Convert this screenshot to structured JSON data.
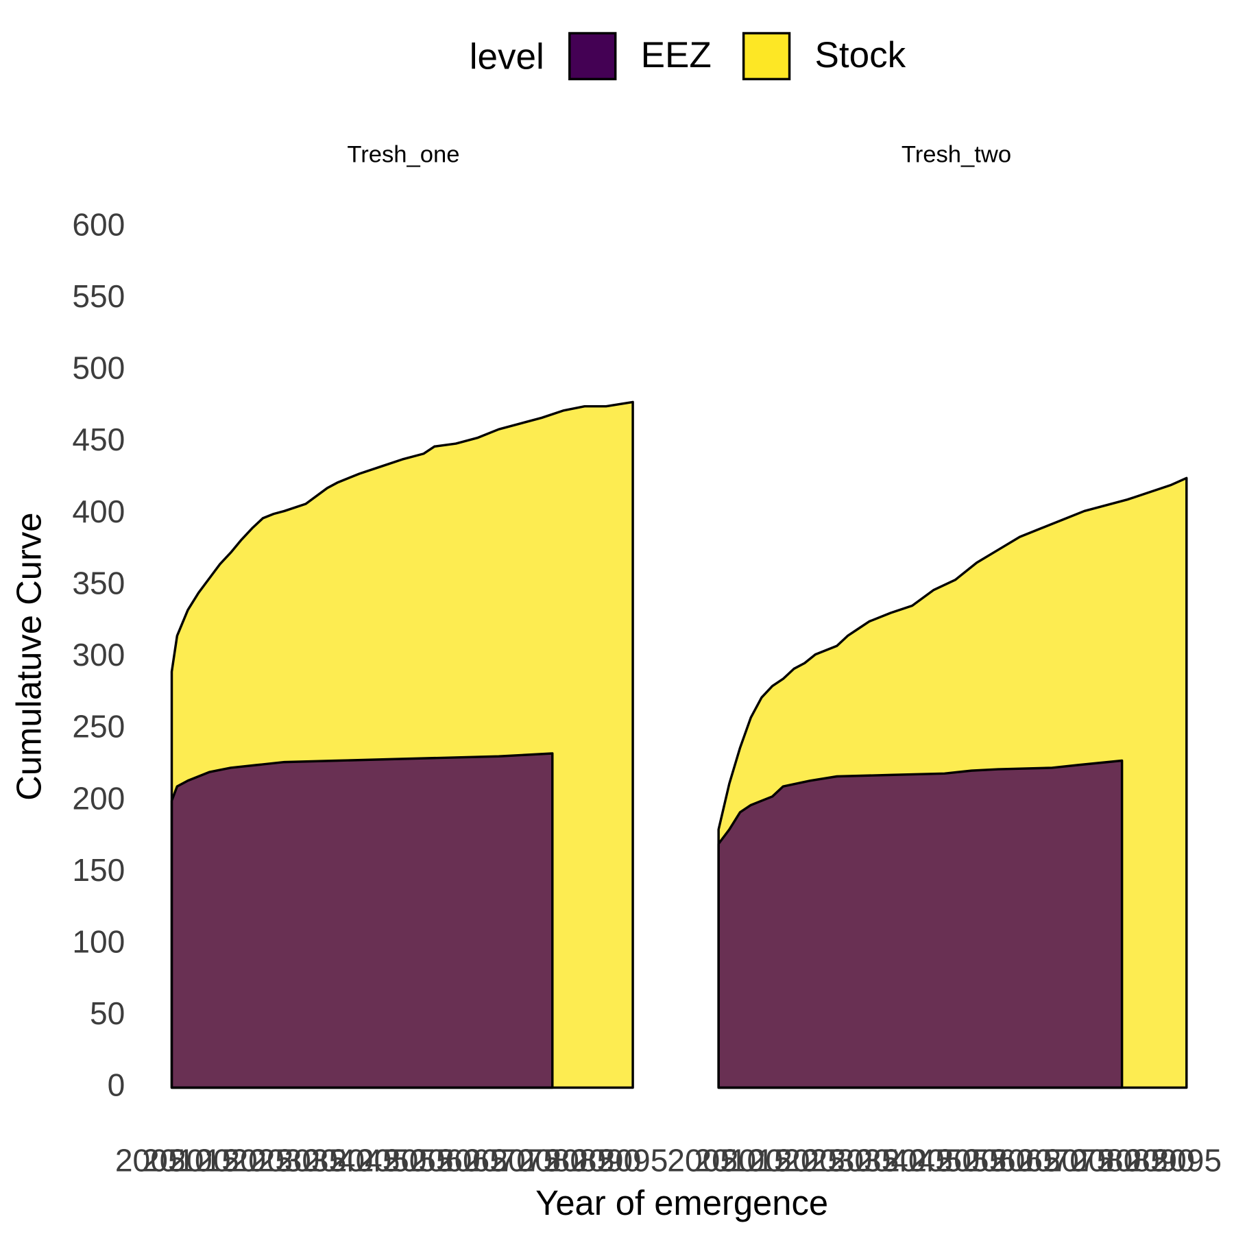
{
  "chart_data": {
    "type": "area",
    "x_label": "Year of emergence",
    "y_label": "Cumulatuve Curve",
    "legend_title": "level",
    "alpha": 0.8,
    "xlim": [
      2005,
      2095
    ],
    "xticks": [
      2005,
      2010,
      2015,
      2020,
      2025,
      2030,
      2035,
      2040,
      2045,
      2050,
      2055,
      2060,
      2065,
      2070,
      2075,
      2080,
      2085,
      2090,
      2095
    ],
    "ylim": [
      0,
      600
    ],
    "yticks": [
      0,
      50,
      100,
      150,
      200,
      250,
      300,
      350,
      400,
      450,
      500,
      550,
      600
    ],
    "facets": [
      {
        "title": "Tresh_one",
        "series": [
          {
            "name": "Stock",
            "color": "#FDE725",
            "x": [
              2009,
              2010,
              2012,
              2014,
              2016,
              2018,
              2020,
              2022,
              2024,
              2026,
              2028,
              2030,
              2034,
              2038,
              2040,
              2044,
              2048,
              2052,
              2056,
              2058,
              2062,
              2066,
              2070,
              2074,
              2078,
              2082,
              2086,
              2090,
              2095
            ],
            "values": [
              290,
              315,
              333,
              345,
              355,
              365,
              373,
              382,
              390,
              397,
              400,
              402,
              407,
              418,
              422,
              428,
              433,
              438,
              442,
              447,
              449,
              453,
              459,
              463,
              467,
              472,
              475,
              475,
              478
            ]
          },
          {
            "name": "EEZ",
            "color": "#440154",
            "x": [
              2009,
              2010,
              2012,
              2014,
              2016,
              2020,
              2025,
              2030,
              2040,
              2050,
              2060,
              2070,
              2080
            ],
            "values": [
              200,
              210,
              214,
              217,
              220,
              223,
              225,
              227,
              228,
              229,
              230,
              231,
              233
            ]
          }
        ]
      },
      {
        "title": "Tresh_two",
        "series": [
          {
            "name": "Stock",
            "color": "#FDE725",
            "x": [
              2008,
              2010,
              2012,
              2014,
              2016,
              2018,
              2020,
              2022,
              2024,
              2026,
              2028,
              2030,
              2032,
              2034,
              2036,
              2040,
              2044,
              2048,
              2052,
              2056,
              2060,
              2064,
              2068,
              2072,
              2076,
              2080,
              2084,
              2088,
              2092,
              2095
            ],
            "values": [
              180,
              212,
              237,
              258,
              272,
              280,
              285,
              292,
              296,
              302,
              305,
              308,
              315,
              320,
              325,
              331,
              336,
              347,
              354,
              366,
              375,
              384,
              390,
              396,
              402,
              406,
              410,
              415,
              420,
              425
            ]
          },
          {
            "name": "EEZ",
            "color": "#440154",
            "x": [
              2008,
              2010,
              2012,
              2014,
              2016,
              2018,
              2020,
              2025,
              2030,
              2040,
              2050,
              2055,
              2060,
              2070,
              2075,
              2083
            ],
            "values": [
              170,
              180,
              192,
              197,
              200,
              203,
              210,
              214,
              217,
              218,
              219,
              221,
              222,
              223,
              225,
              228
            ]
          }
        ]
      }
    ]
  }
}
